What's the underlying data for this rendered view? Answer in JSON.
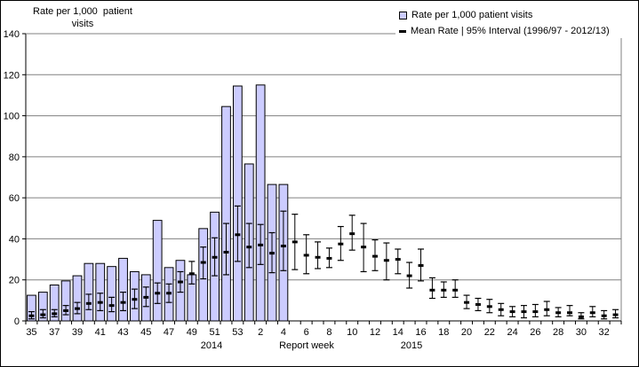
{
  "title": {
    "line1": "Rate per 1,000  patient",
    "line2": "visits"
  },
  "legend": {
    "items": [
      {
        "icon": "bar-swatch",
        "label": "Rate per 1,000 patient visits"
      },
      {
        "icon": "mean-dash",
        "label": "Mean Rate | 95% Interval (1996/97 - 2012/13)"
      }
    ]
  },
  "x_axis": {
    "title": "Report week",
    "year_left": "2014",
    "year_right": "2015"
  },
  "colors": {
    "bar_fill": "#CCCCFF",
    "bar_stroke": "#000000",
    "grid": "#808080",
    "plot_border": "#808080",
    "axis": "#000000",
    "error": "#000000",
    "text": "#000000"
  },
  "chart_data": {
    "type": "bar",
    "title": "Rate per 1,000 patient visits",
    "xlabel": "Report week",
    "ylabel": "Rate per 1,000 patient visits",
    "ylim": [
      0,
      140
    ],
    "y_ticks": [
      0,
      20,
      40,
      60,
      80,
      100,
      120,
      140
    ],
    "x_label_stride": 2,
    "grid": true,
    "legend_position": "top-right",
    "year_groups": [
      {
        "label": "2014",
        "weeks": "35-53"
      },
      {
        "label": "2015",
        "weeks": "1-33"
      }
    ],
    "categories": [
      "35",
      "36",
      "37",
      "38",
      "39",
      "40",
      "41",
      "42",
      "43",
      "44",
      "45",
      "46",
      "47",
      "48",
      "49",
      "50",
      "51",
      "52",
      "53",
      "1",
      "2",
      "3",
      "4",
      "5",
      "6",
      "7",
      "8",
      "9",
      "10",
      "11",
      "12",
      "13",
      "14",
      "15",
      "16",
      "17",
      "18",
      "19",
      "20",
      "21",
      "22",
      "23",
      "24",
      "25",
      "26",
      "27",
      "28",
      "29",
      "30",
      "31",
      "32",
      "33"
    ],
    "series": [
      {
        "name": "Rate per 1,000 patient visits",
        "type": "bar",
        "values": [
          12.5,
          14,
          17.5,
          19.5,
          22,
          28,
          28,
          26.5,
          30.5,
          24,
          22.5,
          49,
          26,
          29.5,
          22.5,
          45,
          53,
          104.5,
          114.5,
          76.5,
          115,
          66.5,
          66.5,
          null,
          null,
          null,
          null,
          null,
          null,
          null,
          null,
          null,
          null,
          null,
          null,
          null,
          null,
          null,
          null,
          null,
          null,
          null,
          null,
          null,
          null,
          null,
          null,
          null,
          null,
          null,
          null,
          null
        ]
      },
      {
        "name": "Mean Rate | 95% Interval (1996/97 - 2012/13)",
        "type": "errorbar",
        "mean": [
          2.5,
          3,
          3.5,
          5,
          6,
          8.5,
          9,
          7.5,
          9,
          10.5,
          11.5,
          13.5,
          13.5,
          19,
          23,
          28.5,
          31,
          33.5,
          42,
          36,
          37,
          33,
          36.5,
          38.5,
          32,
          31,
          30.5,
          37.5,
          42.5,
          36,
          31.5,
          29.5,
          30,
          22,
          27,
          15,
          15,
          15,
          9,
          8,
          7,
          5.5,
          4.5,
          4.5,
          4.5,
          5.5,
          4,
          4,
          2,
          4,
          2.5,
          3
        ],
        "low": [
          1,
          1.5,
          2,
          3,
          3.5,
          5.5,
          5,
          4.5,
          5,
          6,
          7,
          8.5,
          9,
          14,
          18,
          20.5,
          22,
          22.5,
          29,
          26,
          27.5,
          23.5,
          24.5,
          25,
          23,
          25.5,
          26,
          29.5,
          34.5,
          24,
          24.5,
          20,
          23,
          16,
          19.5,
          11,
          11.5,
          11.5,
          6,
          5,
          4,
          2.5,
          2,
          1.5,
          2,
          2.5,
          2,
          2.5,
          1,
          2,
          1,
          1.5
        ],
        "high": [
          4.5,
          5.5,
          5.5,
          7.5,
          9,
          13,
          13.5,
          11.5,
          14,
          15.5,
          16.5,
          18.5,
          18,
          24,
          29,
          36,
          40.5,
          47.5,
          56,
          47.5,
          47,
          43,
          53.5,
          52,
          42,
          38.5,
          35.5,
          46,
          51.5,
          47.5,
          39.5,
          38,
          35,
          28.5,
          35,
          21,
          19,
          20,
          12.5,
          11,
          10.5,
          8.5,
          7,
          7.5,
          8,
          9.5,
          6.5,
          7.5,
          4,
          7,
          5,
          5.5
        ]
      }
    ]
  }
}
